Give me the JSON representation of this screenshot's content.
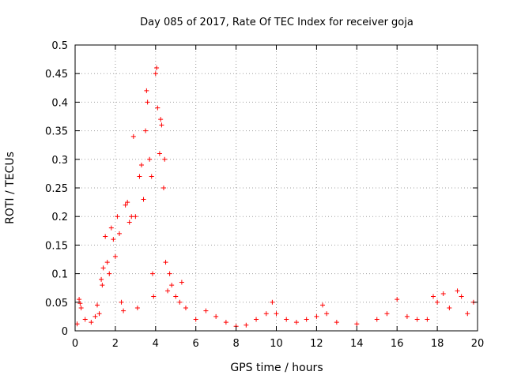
{
  "chart_data": {
    "type": "scatter",
    "title": "Day 085 of 2017, Rate Of TEC Index for receiver goja",
    "xlabel": "GPS time / hours",
    "ylabel": "ROTI / TECUs",
    "xlim": [
      0,
      20
    ],
    "ylim": [
      0,
      0.5
    ],
    "x_ticks": [
      "0",
      "2",
      "4",
      "6",
      "8",
      "10",
      "12",
      "14",
      "16",
      "18",
      "20"
    ],
    "y_ticks": [
      "0",
      "0.05",
      "0.1",
      "0.15",
      "0.2",
      "0.25",
      "0.3",
      "0.35",
      "0.4",
      "0.45",
      "0.5"
    ],
    "grid": true,
    "marker": "+",
    "color": "#ff0000",
    "series": [
      {
        "name": "",
        "points": [
          [
            0.1,
            0.012
          ],
          [
            0.2,
            0.055
          ],
          [
            0.25,
            0.048
          ],
          [
            0.3,
            0.04
          ],
          [
            0.5,
            0.02
          ],
          [
            0.8,
            0.015
          ],
          [
            1.0,
            0.025
          ],
          [
            1.1,
            0.045
          ],
          [
            1.2,
            0.03
          ],
          [
            1.3,
            0.09
          ],
          [
            1.35,
            0.08
          ],
          [
            1.4,
            0.11
          ],
          [
            1.5,
            0.165
          ],
          [
            1.6,
            0.12
          ],
          [
            1.7,
            0.1
          ],
          [
            1.8,
            0.18
          ],
          [
            1.9,
            0.16
          ],
          [
            2.0,
            0.13
          ],
          [
            2.1,
            0.2
          ],
          [
            2.2,
            0.17
          ],
          [
            2.3,
            0.05
          ],
          [
            2.4,
            0.035
          ],
          [
            2.5,
            0.22
          ],
          [
            2.6,
            0.225
          ],
          [
            2.7,
            0.19
          ],
          [
            2.8,
            0.2
          ],
          [
            2.9,
            0.34
          ],
          [
            3.0,
            0.2
          ],
          [
            3.1,
            0.04
          ],
          [
            3.2,
            0.27
          ],
          [
            3.3,
            0.29
          ],
          [
            3.4,
            0.23
          ],
          [
            3.5,
            0.35
          ],
          [
            3.55,
            0.42
          ],
          [
            3.6,
            0.4
          ],
          [
            3.7,
            0.3
          ],
          [
            3.8,
            0.27
          ],
          [
            3.85,
            0.1
          ],
          [
            3.9,
            0.06
          ],
          [
            4.0,
            0.45
          ],
          [
            4.05,
            0.46
          ],
          [
            4.1,
            0.39
          ],
          [
            4.2,
            0.31
          ],
          [
            4.25,
            0.37
          ],
          [
            4.3,
            0.36
          ],
          [
            4.4,
            0.25
          ],
          [
            4.45,
            0.3
          ],
          [
            4.5,
            0.12
          ],
          [
            4.6,
            0.07
          ],
          [
            4.7,
            0.1
          ],
          [
            4.8,
            0.08
          ],
          [
            5.0,
            0.06
          ],
          [
            5.2,
            0.05
          ],
          [
            5.3,
            0.085
          ],
          [
            5.5,
            0.04
          ],
          [
            6.0,
            0.02
          ],
          [
            6.5,
            0.035
          ],
          [
            7.0,
            0.025
          ],
          [
            7.5,
            0.015
          ],
          [
            8.0,
            0.008
          ],
          [
            8.5,
            0.01
          ],
          [
            9.0,
            0.02
          ],
          [
            9.5,
            0.03
          ],
          [
            9.8,
            0.05
          ],
          [
            10.0,
            0.03
          ],
          [
            10.5,
            0.02
          ],
          [
            11.0,
            0.015
          ],
          [
            11.5,
            0.02
          ],
          [
            12.0,
            0.025
          ],
          [
            12.3,
            0.045
          ],
          [
            12.5,
            0.03
          ],
          [
            13.0,
            0.015
          ],
          [
            14.0,
            0.012
          ],
          [
            15.0,
            0.02
          ],
          [
            15.5,
            0.03
          ],
          [
            16.0,
            0.055
          ],
          [
            16.5,
            0.025
          ],
          [
            17.0,
            0.02
          ],
          [
            17.5,
            0.02
          ],
          [
            17.8,
            0.06
          ],
          [
            18.0,
            0.05
          ],
          [
            18.3,
            0.065
          ],
          [
            18.6,
            0.04
          ],
          [
            19.0,
            0.07
          ],
          [
            19.2,
            0.06
          ],
          [
            19.5,
            0.03
          ],
          [
            19.8,
            0.05
          ]
        ]
      }
    ]
  }
}
